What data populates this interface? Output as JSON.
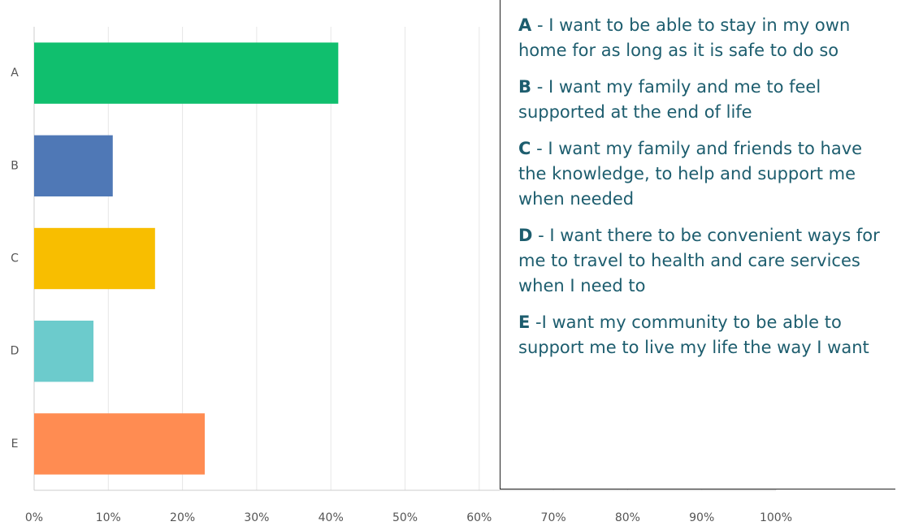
{
  "chart_data": {
    "type": "hbar",
    "categories": [
      "A",
      "B",
      "C",
      "D",
      "E"
    ],
    "values": [
      41,
      10.6,
      16.3,
      8,
      23
    ],
    "colors": [
      "#10bf6e",
      "#4f78b6",
      "#f8be00",
      "#6ccbcc",
      "#ff8c52"
    ],
    "xlim": [
      0,
      100
    ],
    "xticks": [
      {
        "value": 0,
        "label": "0%"
      },
      {
        "value": 10,
        "label": "10%"
      },
      {
        "value": 20,
        "label": "20%"
      },
      {
        "value": 30,
        "label": "30%"
      },
      {
        "value": 40,
        "label": "40%"
      },
      {
        "value": 50,
        "label": "50%"
      },
      {
        "value": 60,
        "label": "60%"
      },
      {
        "value": 70,
        "label": "70%"
      },
      {
        "value": 80,
        "label": "80%"
      },
      {
        "value": 90,
        "label": "90%"
      },
      {
        "value": 100,
        "label": "100%"
      }
    ],
    "grid": true,
    "legend": [
      {
        "key": "A",
        "text": " - I want to be able to stay in my own home for as long as it is safe to do so"
      },
      {
        "key": "B",
        "text": " - I want my family and me to feel supported at the end of life"
      },
      {
        "key": "C",
        "text": " - I want my family and friends to have the knowledge, to help and support me when needed"
      },
      {
        "key": "D",
        "text": " - I want there to be convenient ways for me to travel to health and care services when I need to"
      },
      {
        "key": "E",
        "text": " -I want my community to be able to support me to live my life the way I want"
      }
    ]
  }
}
